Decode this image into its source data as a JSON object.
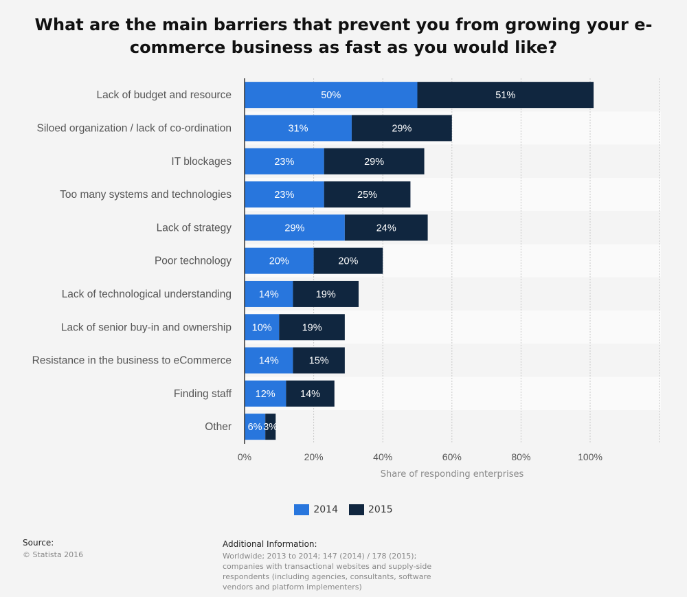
{
  "title": "What are the main barriers that prevent you from growing your e-commerce business as fast as you would like?",
  "chart_data": {
    "type": "bar",
    "orientation": "horizontal",
    "stacked": true,
    "categories": [
      "Lack of budget and resource",
      "Siloed organization / lack of co-ordination",
      "IT blockages",
      "Too many systems and technologies",
      "Lack of strategy",
      "Poor technology",
      "Lack of technological understanding",
      "Lack of senior buy-in and ownership",
      "Resistance in the business to eCommerce",
      "Finding staff",
      "Other"
    ],
    "series": [
      {
        "name": "2014",
        "color": "#2876dd",
        "values": [
          50,
          31,
          23,
          23,
          29,
          20,
          14,
          10,
          14,
          12,
          6
        ]
      },
      {
        "name": "2015",
        "color": "#10263f",
        "values": [
          51,
          29,
          29,
          25,
          24,
          20,
          19,
          19,
          15,
          14,
          3
        ]
      }
    ],
    "value_suffix": "%",
    "xlabel": "Share of responding enterprises",
    "xlim": [
      0,
      120
    ],
    "xticks": [
      0,
      20,
      40,
      60,
      80,
      100
    ],
    "xtick_labels": [
      "0%",
      "20%",
      "40%",
      "60%",
      "80%",
      "100%"
    ],
    "grid": true,
    "legend_position": "bottom"
  },
  "footer": {
    "source_heading": "Source:",
    "source_text": "© Statista 2016",
    "info_heading": "Additional Information:",
    "info_text": "Worldwide; 2013 to 2014; 147 (2014) / 178 (2015); companies with transactional websites and supply-side respondents (including agencies, consultants, software vendors and platform implementers)"
  }
}
